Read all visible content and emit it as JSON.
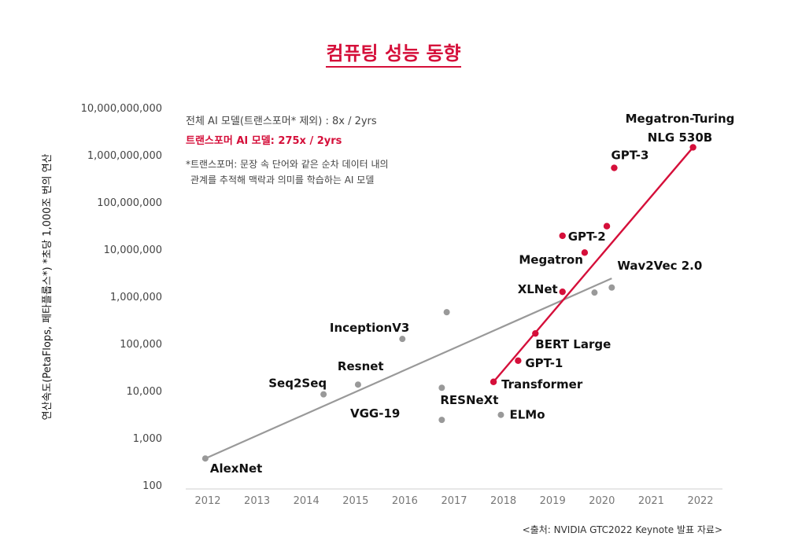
{
  "chart_data": {
    "type": "scatter",
    "title": "컴퓨팅 성능 동향",
    "ylabel": "연산속도(PetaFlops, 페타플롭스*) *초당 1,000조 번의 연산",
    "xlabel": "",
    "yscale": "log",
    "ylim": [
      100,
      10000000000
    ],
    "xlim": [
      2011.6,
      2022.4
    ],
    "x_ticks": [
      "2012",
      "2013",
      "2014",
      "2015",
      "2016",
      "2017",
      "2018",
      "2019",
      "2020",
      "2021",
      "2022"
    ],
    "y_ticks": [
      {
        "value": 100,
        "label": "100"
      },
      {
        "value": 1000,
        "label": "1,000"
      },
      {
        "value": 10000,
        "label": "10,000"
      },
      {
        "value": 100000,
        "label": "100,000"
      },
      {
        "value": 1000000,
        "label": "1,000,000"
      },
      {
        "value": 10000000,
        "label": "10,000,000"
      },
      {
        "value": 100000000,
        "label": "100,000,000"
      },
      {
        "value": 1000000000,
        "label": "1,000,000,000"
      },
      {
        "value": 10000000000,
        "label": "10,000,000,000"
      }
    ],
    "legend": {
      "gray": "전체 AI 모델(트랜스포머* 제외) : 8x / 2yrs",
      "red": "트랜스포머 AI 모델: 275x / 2yrs",
      "footnote_line1": "*트랜스포머: 문장 속 단어와 같은 순차 데이터 내의",
      "footnote_line2": "관계를 추적해 맥락과 의미를 학습하는 AI 모델"
    },
    "series": [
      {
        "name": "전체 AI 모델(트랜스포머* 제외)",
        "color": "#999999",
        "points": [
          {
            "x": 2011.95,
            "y": 380,
            "label": "AlexNet"
          },
          {
            "x": 2014.35,
            "y": 8700,
            "label": "Seq2Seq"
          },
          {
            "x": 2015.05,
            "y": 14000,
            "label": "Resnet"
          },
          {
            "x": 2015.95,
            "y": 130000,
            "label": "InceptionV3"
          },
          {
            "x": 2016.75,
            "y": 2500,
            "label": "VGG-19"
          },
          {
            "x": 2016.75,
            "y": 12000,
            "label": "RESNeXt"
          },
          {
            "x": 2016.85,
            "y": 480000,
            "label": ""
          },
          {
            "x": 2017.95,
            "y": 3200,
            "label": "ELMo"
          },
          {
            "x": 2019.85,
            "y": 1250000,
            "label": ""
          },
          {
            "x": 2020.2,
            "y": 1600000,
            "label": "Wav2Vec 2.0"
          }
        ],
        "trend": {
          "x": [
            2011.95,
            2020.2
          ],
          "y": [
            380,
            2500000
          ]
        }
      },
      {
        "name": "트랜스포머 AI 모델",
        "color": "#d50f3a",
        "points": [
          {
            "x": 2017.8,
            "y": 16000,
            "label": "Transformer"
          },
          {
            "x": 2018.3,
            "y": 45000,
            "label": "GPT-1"
          },
          {
            "x": 2018.65,
            "y": 170000,
            "label": "BERT Large"
          },
          {
            "x": 2019.2,
            "y": 1300000,
            "label": "XLNet"
          },
          {
            "x": 2019.65,
            "y": 8800000,
            "label": "Megatron"
          },
          {
            "x": 2019.2,
            "y": 20000000,
            "label": "GPT-2"
          },
          {
            "x": 2020.1,
            "y": 32000000,
            "label": ""
          },
          {
            "x": 2020.25,
            "y": 550000000,
            "label": "GPT-3"
          },
          {
            "x": 2021.85,
            "y": 1500000000,
            "label": "Megatron-Turing NLG 530B"
          }
        ],
        "trend": {
          "x": [
            2017.8,
            2021.85
          ],
          "y": [
            16000,
            1500000000
          ]
        }
      }
    ],
    "source": "<출처: NVIDIA GTC2022 Keynote 발표 자료>"
  }
}
